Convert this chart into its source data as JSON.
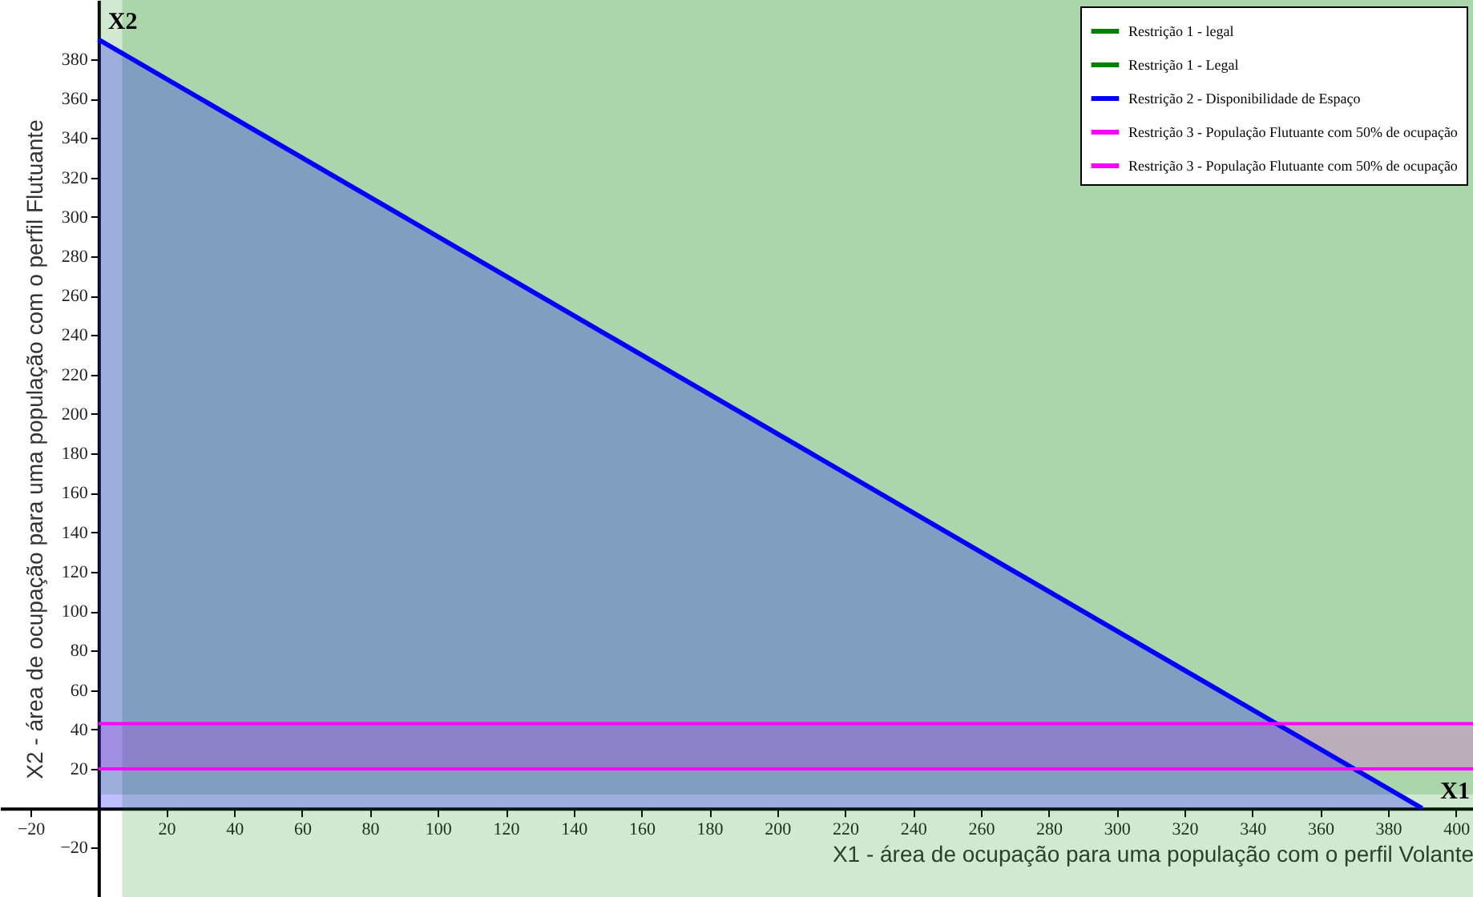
{
  "chart_data": {
    "type": "area",
    "xlabel": "X1 - área de ocupação para uma população com o perfil Volante",
    "ylabel": "X2 - área de ocupação para uma população com o perfil Flutuante",
    "x": [
      0,
      390
    ],
    "series": [
      {
        "name": "Restrição 2 - Disponibilidade de Espaço",
        "color": "#0000ff",
        "values": [
          390,
          0
        ]
      }
    ],
    "xlim": [
      -29,
      405
    ],
    "ylim": [
      -45,
      410
    ],
    "xticks": [
      -20,
      20,
      40,
      60,
      80,
      100,
      120,
      140,
      160,
      180,
      200,
      220,
      240,
      260,
      280,
      300,
      320,
      340,
      360,
      380,
      400
    ],
    "yticks": [
      -20,
      20,
      40,
      60,
      80,
      100,
      120,
      140,
      160,
      180,
      200,
      220,
      240,
      260,
      280,
      300,
      320,
      340,
      360,
      380
    ],
    "bands": [
      {
        "axis": "x",
        "from": 7,
        "to": 405,
        "label": "Restrição 1 - legal",
        "color": "#008000"
      },
      {
        "axis": "y",
        "from": 7,
        "to": 410,
        "label": "Restrição 1 - Legal",
        "color": "#008000"
      },
      {
        "axis": "y",
        "from": 20,
        "to": 43,
        "color": "#ff00ff"
      }
    ],
    "ref_lines": [
      {
        "axis": "y",
        "value": 43,
        "label": "Restrição 3 - População Flutuante com 50% de ocupação",
        "color": "#ff00ff"
      },
      {
        "axis": "y",
        "value": 20,
        "label": "Restrição 3 - População Flutuante com 50% de ocupação",
        "color": "#ff00ff"
      }
    ],
    "annotations": [
      "X1",
      "X2"
    ],
    "legend": "top right",
    "grid": false
  }
}
